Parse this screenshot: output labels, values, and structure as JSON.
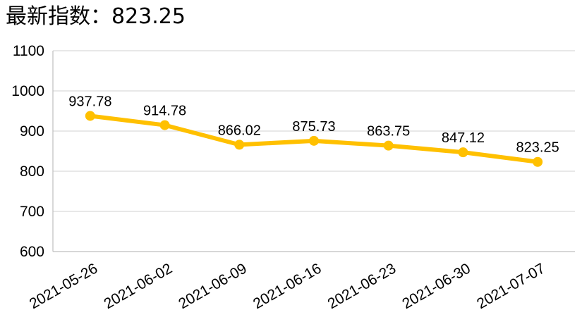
{
  "title": "最新指数：823.25",
  "chart_data": {
    "type": "line",
    "title": "最新指数：823.25",
    "xlabel": "",
    "ylabel": "",
    "categories": [
      "2021-05-26",
      "2021-06-02",
      "2021-06-09",
      "2021-06-16",
      "2021-06-23",
      "2021-06-30",
      "2021-07-07"
    ],
    "series": [
      {
        "values": [
          937.78,
          914.78,
          866.02,
          875.73,
          863.75,
          847.12,
          823.25
        ],
        "labels": [
          "937.78",
          "914.78",
          "866.02",
          "875.73",
          "863.75",
          "847.12",
          "823.25"
        ],
        "color": "#FFC000"
      }
    ],
    "ylim": [
      600,
      1100
    ],
    "yticks": [
      600,
      700,
      800,
      900,
      1000,
      1100
    ],
    "ytick_labels": [
      "600",
      "700",
      "800",
      "900",
      "1000",
      "1100"
    ],
    "grid": true,
    "legend": "none"
  }
}
